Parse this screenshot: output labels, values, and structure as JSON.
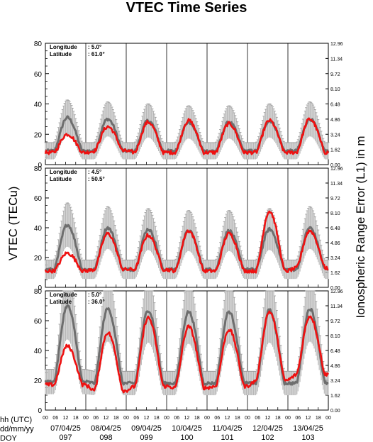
{
  "title": "VTEC Time Series",
  "ylabel_left": "VTEC (TECu)",
  "ylabel_right": "Ionospheric Range Error (L1) in m",
  "xaxis_rows": {
    "hh": "hh (UTC)",
    "date": "dd/mm/yy",
    "doy": "DOY"
  },
  "hour_ticks": [
    "00",
    "06",
    "12",
    "18"
  ],
  "days": [
    {
      "date": "07/04/25",
      "doy": "097"
    },
    {
      "date": "08/04/25",
      "doy": "098"
    },
    {
      "date": "09/04/25",
      "doy": "099"
    },
    {
      "date": "10/04/25",
      "doy": "100"
    },
    {
      "date": "11/04/25",
      "doy": "101"
    },
    {
      "date": "12/04/25",
      "doy": "102"
    },
    {
      "date": "13/04/25",
      "doy": "103"
    }
  ],
  "colors": {
    "observed": "#ee1111",
    "median": "#6e6e6e",
    "spread": "#b8b8b8"
  },
  "chart_data": [
    {
      "type": "line",
      "panel": "top",
      "location": {
        "longitude_label": "Longitude",
        "longitude": ":  5.0°",
        "latitude_label": "Latitude",
        "latitude": ": 61.0°"
      },
      "ylim": [
        0,
        80
      ],
      "yticks": [
        "0",
        "20",
        "40",
        "60",
        "80"
      ],
      "right_ticks": [
        "0.00",
        "1.62",
        "3.24",
        "4.86",
        "6.48",
        "8.10",
        "9.72",
        "11.34",
        "12.96"
      ],
      "x_days": 7,
      "daily_observed": [
        {
          "night": 8,
          "peak": 20
        },
        {
          "night": 9,
          "peak": 25
        },
        {
          "night": 8,
          "peak": 28
        },
        {
          "night": 8,
          "peak": 29
        },
        {
          "night": 8,
          "peak": 27
        },
        {
          "night": 8,
          "peak": 29
        },
        {
          "night": 8,
          "peak": 30
        }
      ],
      "daily_median": [
        {
          "night": 9,
          "peak": 31
        },
        {
          "night": 9,
          "peak": 30
        },
        {
          "night": 9,
          "peak": 29
        },
        {
          "night": 9,
          "peak": 28
        },
        {
          "night": 9,
          "peak": 28
        },
        {
          "night": 9,
          "peak": 29
        },
        {
          "night": 9,
          "peak": 30
        }
      ]
    },
    {
      "type": "line",
      "panel": "middle",
      "location": {
        "longitude_label": "Longitude",
        "longitude": ":  4.5°",
        "latitude_label": "Latitude",
        "latitude": ": 50.5°"
      },
      "ylim": [
        0,
        80
      ],
      "yticks": [
        "0",
        "20",
        "40",
        "60",
        "80"
      ],
      "right_ticks": [
        "0.00",
        "1.62",
        "3.24",
        "4.86",
        "6.48",
        "8.10",
        "9.72",
        "11.34",
        "12.96"
      ],
      "x_days": 7,
      "daily_observed": [
        {
          "night": 11,
          "peak": 23
        },
        {
          "night": 12,
          "peak": 36
        },
        {
          "night": 12,
          "peak": 35
        },
        {
          "night": 11,
          "peak": 38
        },
        {
          "night": 11,
          "peak": 36
        },
        {
          "night": 11,
          "peak": 51
        },
        {
          "night": 13,
          "peak": 38
        }
      ],
      "daily_median": [
        {
          "night": 12,
          "peak": 42
        },
        {
          "night": 12,
          "peak": 40
        },
        {
          "night": 12,
          "peak": 39
        },
        {
          "night": 12,
          "peak": 38
        },
        {
          "night": 12,
          "peak": 38
        },
        {
          "night": 12,
          "peak": 39
        },
        {
          "night": 12,
          "peak": 40
        }
      ]
    },
    {
      "type": "line",
      "panel": "bottom",
      "location": {
        "longitude_label": "Longitude",
        "longitude": ":  5.0°",
        "latitude_label": "Latitude",
        "latitude": ": 36.0°"
      },
      "ylim": [
        0,
        80
      ],
      "yticks": [
        "0",
        "20",
        "40",
        "60",
        "80"
      ],
      "right_ticks": [
        "0.00",
        "1.62",
        "3.24",
        "4.86",
        "6.48",
        "8.10",
        "9.72",
        "11.34",
        "12.96"
      ],
      "x_days": 7,
      "daily_observed": [
        {
          "night": 17,
          "peak": 43
        },
        {
          "night": 13,
          "peak": 52
        },
        {
          "night": 16,
          "peak": 62
        },
        {
          "night": 15,
          "peak": 56
        },
        {
          "night": 16,
          "peak": 54
        },
        {
          "night": 20,
          "peak": 66
        },
        {
          "night": 24,
          "peak": 63
        }
      ],
      "daily_median": [
        {
          "night": 19,
          "peak": 70
        },
        {
          "night": 18,
          "peak": 68
        },
        {
          "night": 18,
          "peak": 67
        },
        {
          "night": 18,
          "peak": 66
        },
        {
          "night": 18,
          "peak": 66
        },
        {
          "night": 18,
          "peak": 67
        },
        {
          "night": 18,
          "peak": 68
        }
      ]
    }
  ]
}
